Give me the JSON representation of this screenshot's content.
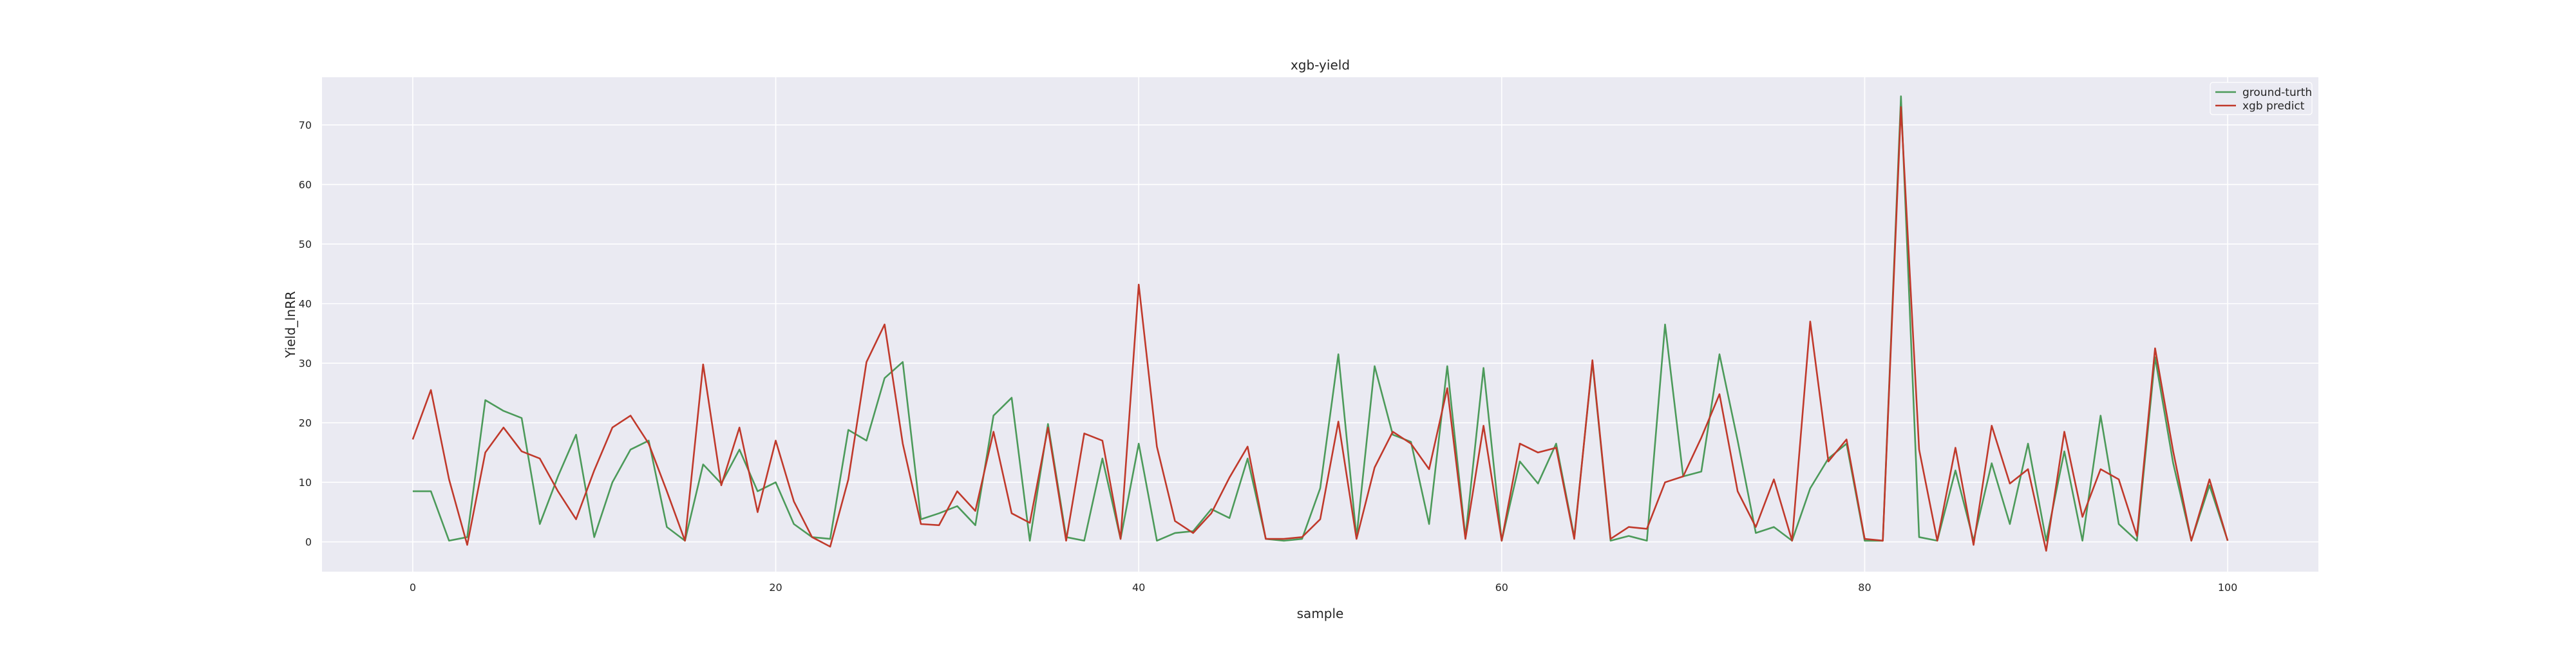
{
  "chart_data": {
    "type": "line",
    "title": "xgb-yield",
    "xlabel": "sample",
    "ylabel": "Yield_lnRR",
    "xlim": [
      -5,
      105
    ],
    "ylim": [
      -5,
      78
    ],
    "xticks": [
      0,
      20,
      40,
      60,
      80,
      100
    ],
    "yticks": [
      0,
      10,
      20,
      30,
      40,
      50,
      60,
      70
    ],
    "grid": true,
    "legend_position": "upper-right",
    "x": [
      0,
      1,
      2,
      3,
      4,
      5,
      6,
      7,
      8,
      9,
      10,
      11,
      12,
      13,
      14,
      15,
      16,
      17,
      18,
      19,
      20,
      21,
      22,
      23,
      24,
      25,
      26,
      27,
      28,
      29,
      30,
      31,
      32,
      33,
      34,
      35,
      36,
      37,
      38,
      39,
      40,
      41,
      42,
      43,
      44,
      45,
      46,
      47,
      48,
      49,
      50,
      51,
      52,
      53,
      54,
      55,
      56,
      57,
      58,
      59,
      60,
      61,
      62,
      63,
      64,
      65,
      66,
      67,
      68,
      69,
      70,
      71,
      72,
      73,
      74,
      75,
      76,
      77,
      78,
      79,
      80,
      81,
      82,
      83,
      84,
      85,
      86,
      87,
      88,
      89,
      90,
      91,
      92,
      93,
      94,
      95,
      96,
      97,
      98,
      99,
      100
    ],
    "series": [
      {
        "name": "ground-turth",
        "color": "#4c9a5a",
        "values": [
          8.5,
          8.5,
          0.2,
          0.8,
          23.8,
          22,
          20.8,
          3,
          11,
          18,
          0.8,
          10,
          15.5,
          17,
          2.5,
          0.2,
          13,
          9.8,
          15.5,
          8.5,
          10,
          3,
          0.8,
          0.5,
          18.8,
          17,
          27.5,
          30.2,
          3.8,
          4.8,
          6,
          2.8,
          21.2,
          24.2,
          0.2,
          19.8,
          0.8,
          0.2,
          14,
          0.5,
          16.5,
          0.2,
          1.5,
          1.8,
          5.5,
          4,
          14,
          0.5,
          0.2,
          0.5,
          9,
          31.5,
          0.8,
          29.5,
          18,
          16.8,
          3,
          29.5,
          0.8,
          29.2,
          0.2,
          13.5,
          9.8,
          16.5,
          0.8,
          30.2,
          0.2,
          1,
          0.2,
          36.5,
          11,
          11.8,
          31.5,
          17,
          1.5,
          2.5,
          0.2,
          9,
          14,
          16.5,
          0.2,
          0.2,
          74.8,
          0.8,
          0.2,
          12,
          0.2,
          13.2,
          3,
          16.5,
          0.2,
          15.2,
          0.2,
          21.2,
          3,
          0.2,
          31,
          13.2,
          0.2,
          9.5,
          0.2
        ]
      },
      {
        "name": "xgb predict",
        "color": "#c0392b",
        "values": [
          17.2,
          25.5,
          10.5,
          -0.5,
          15,
          19.2,
          15.2,
          14,
          8.5,
          3.8,
          12,
          19.2,
          21.2,
          16.5,
          8.5,
          0.2,
          29.8,
          9.5,
          19.2,
          5,
          17,
          6.8,
          0.8,
          -0.8,
          10.5,
          30.2,
          36.5,
          16.5,
          3,
          2.8,
          8.5,
          5.2,
          18.5,
          4.8,
          3.2,
          19.2,
          0.2,
          18.2,
          17,
          0.5,
          43.2,
          16,
          3.5,
          1.5,
          4.8,
          10.8,
          16,
          0.5,
          0.5,
          0.8,
          3.8,
          20.2,
          0.5,
          12.5,
          18.5,
          16.5,
          12.2,
          25.8,
          0.5,
          19.5,
          0.2,
          16.5,
          15,
          15.8,
          0.5,
          30.5,
          0.5,
          2.5,
          2.2,
          10,
          11,
          17.5,
          24.8,
          8.5,
          2.5,
          10.5,
          0.2,
          37,
          13.5,
          17.2,
          0.5,
          0.2,
          73,
          15.5,
          0.2,
          15.8,
          -0.5,
          19.5,
          9.8,
          12.2,
          -1.5,
          18.5,
          4.2,
          12.2,
          10.5,
          1,
          32.5,
          15.2,
          0.2,
          10.5,
          0.2
        ]
      }
    ]
  }
}
